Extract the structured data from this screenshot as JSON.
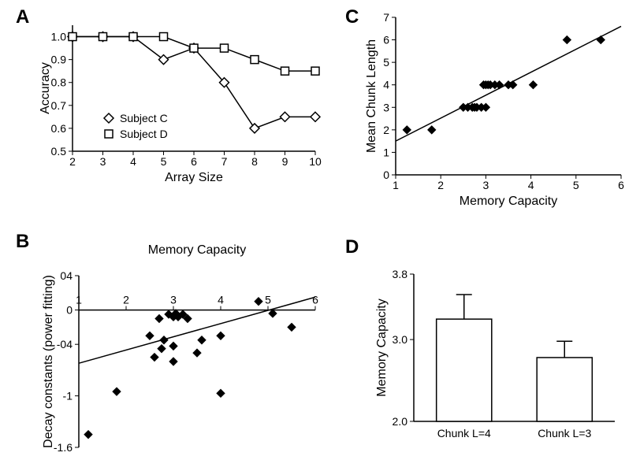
{
  "panelA": {
    "label": "A",
    "type": "line",
    "xlabel": "Array Size",
    "ylabel": "Accuracy",
    "xlim": [
      2,
      10
    ],
    "ylim": [
      0.5,
      1.05
    ],
    "xticks": [
      2,
      3,
      4,
      5,
      6,
      7,
      8,
      9,
      10
    ],
    "yticks": [
      0.5,
      0.6,
      0.7,
      0.8,
      0.9,
      1.0
    ],
    "series": [
      {
        "name": "Subject C",
        "marker": "diamond",
        "x": [
          2,
          3,
          4,
          5,
          6,
          7,
          8,
          9,
          10
        ],
        "y": [
          1.0,
          1.0,
          1.0,
          0.9,
          0.95,
          0.8,
          0.6,
          0.65,
          0.65
        ]
      },
      {
        "name": "Subject D",
        "marker": "square",
        "x": [
          2,
          3,
          4,
          5,
          6,
          7,
          8,
          9,
          10
        ],
        "y": [
          1.0,
          1.0,
          1.0,
          1.0,
          0.95,
          0.95,
          0.9,
          0.85,
          0.85
        ]
      }
    ],
    "legend_items": [
      "Subject C",
      "Subject D"
    ],
    "label_fontsize": 16,
    "tick_fontsize": 14,
    "line_color": "#000000",
    "marker_fill": "#ffffff",
    "marker_size": 6
  },
  "panelB": {
    "label": "B",
    "type": "scatter",
    "xlabel": "Memory Capacity",
    "ylabel": "Decay constants (power fitting)",
    "xlim": [
      1,
      6
    ],
    "ylim": [
      -1.6,
      0.4
    ],
    "xticks": [
      1,
      2,
      3,
      4,
      5,
      6
    ],
    "yticks": [
      -1.6,
      -1.0,
      -0.4,
      0,
      0.4
    ],
    "ytick_labels": [
      "-1.6",
      "-1",
      "-04",
      "0",
      "04"
    ],
    "points": [
      {
        "x": 1.2,
        "y": -1.45
      },
      {
        "x": 1.8,
        "y": -0.95
      },
      {
        "x": 2.5,
        "y": -0.3
      },
      {
        "x": 2.6,
        "y": -0.55
      },
      {
        "x": 2.7,
        "y": -0.1
      },
      {
        "x": 2.75,
        "y": -0.45
      },
      {
        "x": 2.8,
        "y": -0.35
      },
      {
        "x": 2.9,
        "y": -0.05
      },
      {
        "x": 3.0,
        "y": -0.08
      },
      {
        "x": 3.0,
        "y": -0.42
      },
      {
        "x": 3.0,
        "y": -0.6
      },
      {
        "x": 3.05,
        "y": -0.04
      },
      {
        "x": 3.1,
        "y": -0.08
      },
      {
        "x": 3.2,
        "y": -0.05
      },
      {
        "x": 3.3,
        "y": -0.1
      },
      {
        "x": 3.5,
        "y": -0.5
      },
      {
        "x": 3.6,
        "y": -0.35
      },
      {
        "x": 4.0,
        "y": -0.97
      },
      {
        "x": 4.0,
        "y": -0.3
      },
      {
        "x": 4.8,
        "y": 0.1
      },
      {
        "x": 5.1,
        "y": -0.04
      },
      {
        "x": 5.5,
        "y": -0.2
      }
    ],
    "fit_line": {
      "x1": 1,
      "y1": -0.62,
      "x2": 6,
      "y2": 0.15
    },
    "marker_fill": "#000000",
    "marker_size": 5,
    "label_fontsize": 16,
    "tick_fontsize": 14
  },
  "panelC": {
    "label": "C",
    "type": "scatter",
    "xlabel": "Memory Capacity",
    "ylabel": "Mean Chunk Length",
    "xlim": [
      1,
      6
    ],
    "ylim": [
      0,
      7
    ],
    "xticks": [
      1,
      2,
      3,
      4,
      5,
      6
    ],
    "yticks": [
      0,
      1,
      2,
      3,
      4,
      5,
      6,
      7
    ],
    "points": [
      {
        "x": 1.25,
        "y": 2.0
      },
      {
        "x": 1.8,
        "y": 2.0
      },
      {
        "x": 2.5,
        "y": 3.0
      },
      {
        "x": 2.6,
        "y": 3.0
      },
      {
        "x": 2.7,
        "y": 3.0
      },
      {
        "x": 2.75,
        "y": 3.0
      },
      {
        "x": 2.8,
        "y": 3.0
      },
      {
        "x": 2.9,
        "y": 3.0
      },
      {
        "x": 2.95,
        "y": 4.0
      },
      {
        "x": 3.0,
        "y": 3.0
      },
      {
        "x": 3.0,
        "y": 4.0
      },
      {
        "x": 3.05,
        "y": 4.0
      },
      {
        "x": 3.1,
        "y": 4.0
      },
      {
        "x": 3.2,
        "y": 4.0
      },
      {
        "x": 3.3,
        "y": 4.0
      },
      {
        "x": 3.5,
        "y": 4.0
      },
      {
        "x": 3.6,
        "y": 4.0
      },
      {
        "x": 4.05,
        "y": 4.0
      },
      {
        "x": 4.8,
        "y": 6.0
      },
      {
        "x": 5.55,
        "y": 6.0
      }
    ],
    "fit_line": {
      "x1": 1,
      "y1": 1.5,
      "x2": 6,
      "y2": 6.6
    },
    "marker_fill": "#000000",
    "marker_size": 5,
    "label_fontsize": 16,
    "tick_fontsize": 14
  },
  "panelD": {
    "label": "D",
    "type": "bar",
    "ylabel": "Memory Capacity",
    "ylim": [
      2.0,
      3.8
    ],
    "yticks": [
      2.0,
      3.0,
      3.8
    ],
    "categories": [
      "Chunk L=4",
      "Chunk L=3"
    ],
    "values": [
      3.25,
      2.78
    ],
    "errors": [
      0.3,
      0.2
    ],
    "bar_fill": "#ffffff",
    "bar_stroke": "#000000",
    "bar_width": 0.55,
    "label_fontsize": 16,
    "tick_fontsize": 14
  }
}
